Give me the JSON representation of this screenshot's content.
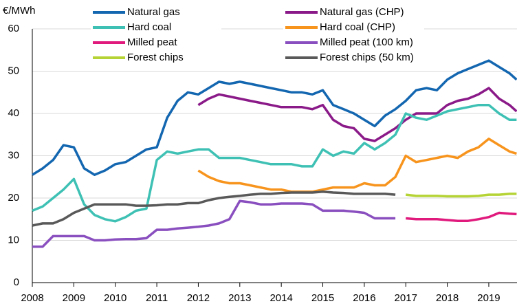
{
  "chart_data": {
    "type": "line",
    "y_label": "€/MWh",
    "x": [
      2008,
      2008.25,
      2008.5,
      2008.75,
      2009,
      2009.25,
      2009.5,
      2009.75,
      2010,
      2010.25,
      2010.5,
      2010.75,
      2011,
      2011.25,
      2011.5,
      2011.75,
      2012,
      2012.25,
      2012.5,
      2012.75,
      2013,
      2013.25,
      2013.5,
      2013.75,
      2014,
      2014.25,
      2014.5,
      2014.75,
      2015,
      2015.25,
      2015.5,
      2015.75,
      2016,
      2016.25,
      2016.5,
      2016.75,
      2017,
      2017.25,
      2017.5,
      2017.75,
      2018,
      2018.25,
      2018.5,
      2018.75,
      2019,
      2019.25,
      2019.5,
      2019.67
    ],
    "series": [
      {
        "name": "Natural gas",
        "color": "#1366b0",
        "values": [
          25.5,
          27,
          29,
          32.5,
          32,
          27,
          25.5,
          26.5,
          28,
          28.5,
          30,
          31.5,
          32,
          39,
          43,
          45,
          44.5,
          46,
          47.5,
          47,
          47.5,
          47,
          46.5,
          46,
          45.5,
          45,
          45,
          44.5,
          45.5,
          42,
          41,
          40,
          38.5,
          37,
          39.5,
          41,
          43,
          45.5,
          46,
          45.5,
          48,
          49.5,
          50.5,
          51.5,
          52.5,
          51,
          49.5,
          48
        ]
      },
      {
        "name": "Natural gas (CHP)",
        "color": "#8b1a89",
        "values": [
          null,
          null,
          null,
          null,
          null,
          null,
          null,
          null,
          null,
          null,
          null,
          null,
          null,
          null,
          null,
          null,
          42,
          43.5,
          44.5,
          44,
          43.5,
          43,
          42.5,
          42,
          41.5,
          41.5,
          41.5,
          41,
          42,
          38.5,
          37,
          36.5,
          34,
          33.5,
          35,
          36.5,
          38.5,
          40,
          40,
          40,
          42,
          43,
          43.5,
          44.5,
          46,
          43.5,
          42,
          40.5
        ]
      },
      {
        "name": "Hard coal",
        "color": "#3ec1b4",
        "values": [
          17,
          18,
          20,
          22,
          24.5,
          18.5,
          16,
          15,
          14.5,
          15.5,
          17,
          17.5,
          29,
          31,
          30.5,
          31,
          31.5,
          31.5,
          29.5,
          29.5,
          29.5,
          29,
          28.5,
          28,
          28,
          28,
          27.5,
          27.5,
          31.5,
          30,
          31,
          30.5,
          33,
          31.5,
          33,
          35,
          40,
          39,
          38.5,
          39.5,
          40.5,
          41,
          41.5,
          42,
          42,
          40,
          38.5,
          38.5
        ]
      },
      {
        "name": "Hard coal (CHP)",
        "color": "#f7941d",
        "values": [
          null,
          null,
          null,
          null,
          null,
          null,
          null,
          null,
          null,
          null,
          null,
          null,
          null,
          null,
          null,
          null,
          26.5,
          25,
          24,
          23.5,
          23.5,
          23,
          22.5,
          22,
          22,
          21.5,
          21.5,
          21.5,
          22,
          22.5,
          22.5,
          22.5,
          23.5,
          23,
          23,
          25,
          30,
          28.5,
          29,
          29.5,
          30,
          29.5,
          31,
          32,
          34,
          32.5,
          31,
          30.5
        ]
      },
      {
        "name": "Milled peat",
        "color": "#e0197d",
        "values": [
          null,
          null,
          null,
          null,
          null,
          null,
          null,
          null,
          null,
          null,
          null,
          null,
          null,
          null,
          null,
          null,
          null,
          null,
          null,
          null,
          null,
          null,
          null,
          null,
          null,
          null,
          null,
          null,
          null,
          null,
          null,
          null,
          null,
          null,
          null,
          null,
          15.2,
          15,
          15,
          15,
          14.8,
          14.6,
          14.6,
          15,
          15.5,
          16.5,
          16.3,
          16.2
        ]
      },
      {
        "name": "Milled peat (100 km)",
        "color": "#8a4fbf",
        "values": [
          8.5,
          8.5,
          11,
          11,
          11,
          11,
          10,
          10,
          10.2,
          10.3,
          10.3,
          10.5,
          12.5,
          12.5,
          12.8,
          13,
          13.2,
          13.5,
          14,
          15,
          19.3,
          19,
          18.5,
          18.5,
          18.7,
          18.7,
          18.7,
          18.5,
          17,
          17,
          17,
          16.8,
          16.5,
          15.2,
          15.2,
          15.2,
          null,
          null,
          null,
          null,
          null,
          null,
          null,
          null,
          null,
          null,
          null,
          null
        ]
      },
      {
        "name": "Forest chips",
        "color": "#b5d334",
        "values": [
          null,
          null,
          null,
          null,
          null,
          null,
          null,
          null,
          null,
          null,
          null,
          null,
          null,
          null,
          null,
          null,
          null,
          null,
          null,
          null,
          null,
          null,
          null,
          null,
          null,
          null,
          null,
          null,
          null,
          null,
          null,
          null,
          null,
          null,
          null,
          null,
          20.8,
          20.5,
          20.5,
          20.5,
          20.4,
          20.4,
          20.4,
          20.5,
          20.8,
          20.8,
          21,
          21
        ]
      },
      {
        "name": "Forest chips (50 km)",
        "color": "#595959",
        "values": [
          13.5,
          14,
          14,
          15,
          16.5,
          17.5,
          18.5,
          18.5,
          18.5,
          18.5,
          18.2,
          18.2,
          18.3,
          18.5,
          18.5,
          18.8,
          18.8,
          19.5,
          20,
          20.3,
          20.5,
          20.8,
          21,
          21,
          21.2,
          21.3,
          21.3,
          21.3,
          21.5,
          21.3,
          21.2,
          21,
          21,
          21,
          21,
          20.8,
          null,
          null,
          null,
          null,
          null,
          null,
          null,
          null,
          null,
          null,
          null,
          null
        ]
      }
    ],
    "xlim": [
      2008,
      2019.68
    ],
    "xticks": [
      2008,
      2009,
      2010,
      2011,
      2012,
      2013,
      2014,
      2015,
      2016,
      2017,
      2018,
      2019
    ],
    "ylim": [
      0,
      60
    ],
    "yticks": [
      0,
      10,
      20,
      30,
      40,
      50,
      60
    ],
    "grid": true
  }
}
